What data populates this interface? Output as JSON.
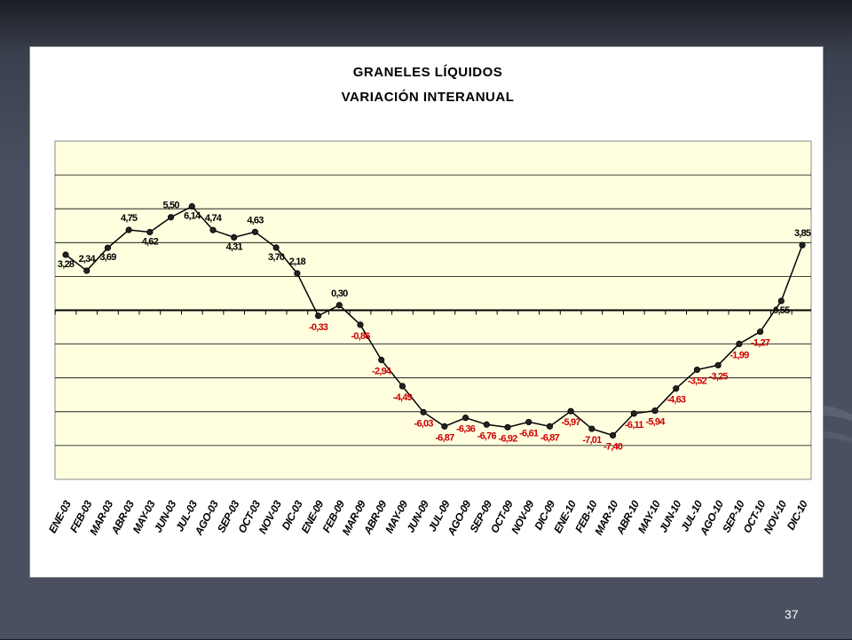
{
  "slide": {
    "page_number": "37"
  },
  "colors": {
    "positive_label": "#000000",
    "negative_label": "#cc0000",
    "plot_bg": "#ffffe0",
    "line": "#000000"
  },
  "chart_data": {
    "type": "line",
    "title": "GRANELES LÍQUIDOS",
    "subtitle": "VARIACIÓN INTERANUAL",
    "ylim": [
      -10,
      10
    ],
    "grid": true,
    "categories": [
      "ENE-03",
      "FEB-03",
      "MAR-03",
      "ABR-03",
      "MAY-03",
      "JUN-03",
      "JUL-03",
      "AGO-03",
      "SEP-03",
      "OCT-03",
      "NOV-03",
      "DIC-03",
      "ENE-09",
      "FEB-09",
      "MAR-09",
      "ABR-09",
      "MAY-09",
      "JUN-09",
      "JUL-09",
      "AGO-09",
      "SEP-09",
      "OCT-09",
      "NOV-09",
      "DIC-09",
      "ENE-10",
      "FEB-10",
      "MAR-10",
      "ABR-10",
      "MAY-10",
      "JUN-10",
      "JUL-10",
      "AGO-10",
      "SEP-10",
      "OCT-10",
      "NOV-10",
      "DIC-10"
    ],
    "values": [
      3.28,
      2.34,
      3.69,
      4.75,
      4.62,
      5.5,
      6.14,
      4.74,
      4.31,
      4.63,
      3.7,
      2.18,
      -0.33,
      0.3,
      -0.86,
      -2.94,
      -4.49,
      -6.03,
      -6.87,
      -6.36,
      -6.76,
      -6.92,
      -6.61,
      -6.87,
      -5.97,
      -7.01,
      -7.4,
      -6.11,
      -5.94,
      -4.63,
      -3.52,
      -3.25,
      -1.99,
      -1.27,
      0.55,
      3.85
    ],
    "data_labels": [
      "3,28",
      "2,34",
      "3,69",
      "4,75",
      "4,62",
      "5,50",
      "6,14",
      "4,74",
      "4,31",
      "4,63",
      "3,70",
      "2,18",
      "-0,33",
      "0,30",
      "-0,86",
      "-2,94",
      "-4,49",
      "-6,03",
      "-6,87",
      "-6,36",
      "-6,76",
      "-6,92",
      "-6,61",
      "-6,87",
      "-5,97",
      "-7,01",
      "-7,40",
      "-6,11",
      "-5,94",
      "-4,63",
      "-3,52",
      "-3,25",
      "-1,99",
      "-1,27",
      "0,55",
      "3,85"
    ]
  }
}
